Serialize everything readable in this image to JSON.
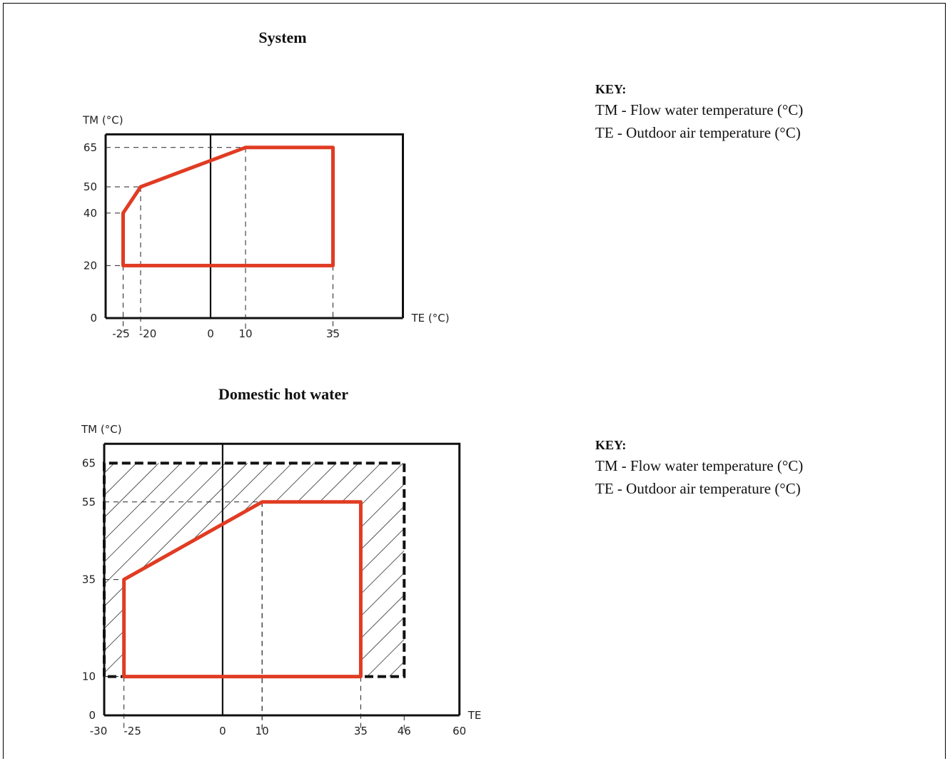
{
  "chart_data": [
    {
      "type": "area",
      "title": "System",
      "ylabel": "TM (°C)",
      "xlabel": "TE (°C)",
      "xlim": [
        -30,
        55
      ],
      "ylim": [
        0,
        70
      ],
      "x_ticks": [
        "-25",
        "-20",
        "0",
        "10",
        "35"
      ],
      "y_ticks": [
        "0",
        "20",
        "40",
        "50",
        "65"
      ],
      "series": [
        {
          "values": [
            [
              -25,
              20
            ],
            [
              -25,
              40
            ],
            [
              -20,
              50
            ],
            [
              10,
              65
            ],
            [
              35,
              65
            ],
            [
              35,
              20
            ]
          ]
        }
      ],
      "accent_color": "#e03c23"
    },
    {
      "type": "area",
      "title": "Domestic hot water",
      "ylabel": "TM (°C)",
      "xlabel": "TE",
      "xlim": [
        -30,
        60
      ],
      "ylim": [
        0,
        70
      ],
      "x_ticks": [
        "-30",
        "-25",
        "0",
        "10",
        "35",
        "46",
        "60"
      ],
      "y_ticks": [
        "0",
        "10",
        "35",
        "55",
        "65"
      ],
      "series": [
        {
          "values": [
            [
              -25,
              10
            ],
            [
              -25,
              35
            ],
            [
              10,
              55
            ],
            [
              35,
              55
            ],
            [
              35,
              10
            ]
          ]
        }
      ],
      "extended_range": [
        [
          -30,
          10
        ],
        [
          -30,
          65
        ],
        [
          46,
          65
        ],
        [
          46,
          10
        ]
      ],
      "accent_color": "#e03c23"
    }
  ],
  "keys": [
    {
      "title": "KEY:",
      "lines": [
        "TM - Flow water temperature (°C)",
        "TE - Outdoor air temperature (°C)"
      ]
    },
    {
      "title": "KEY:",
      "lines": [
        "TM - Flow water temperature (°C)",
        "TE - Outdoor air temperature (°C)"
      ]
    }
  ]
}
